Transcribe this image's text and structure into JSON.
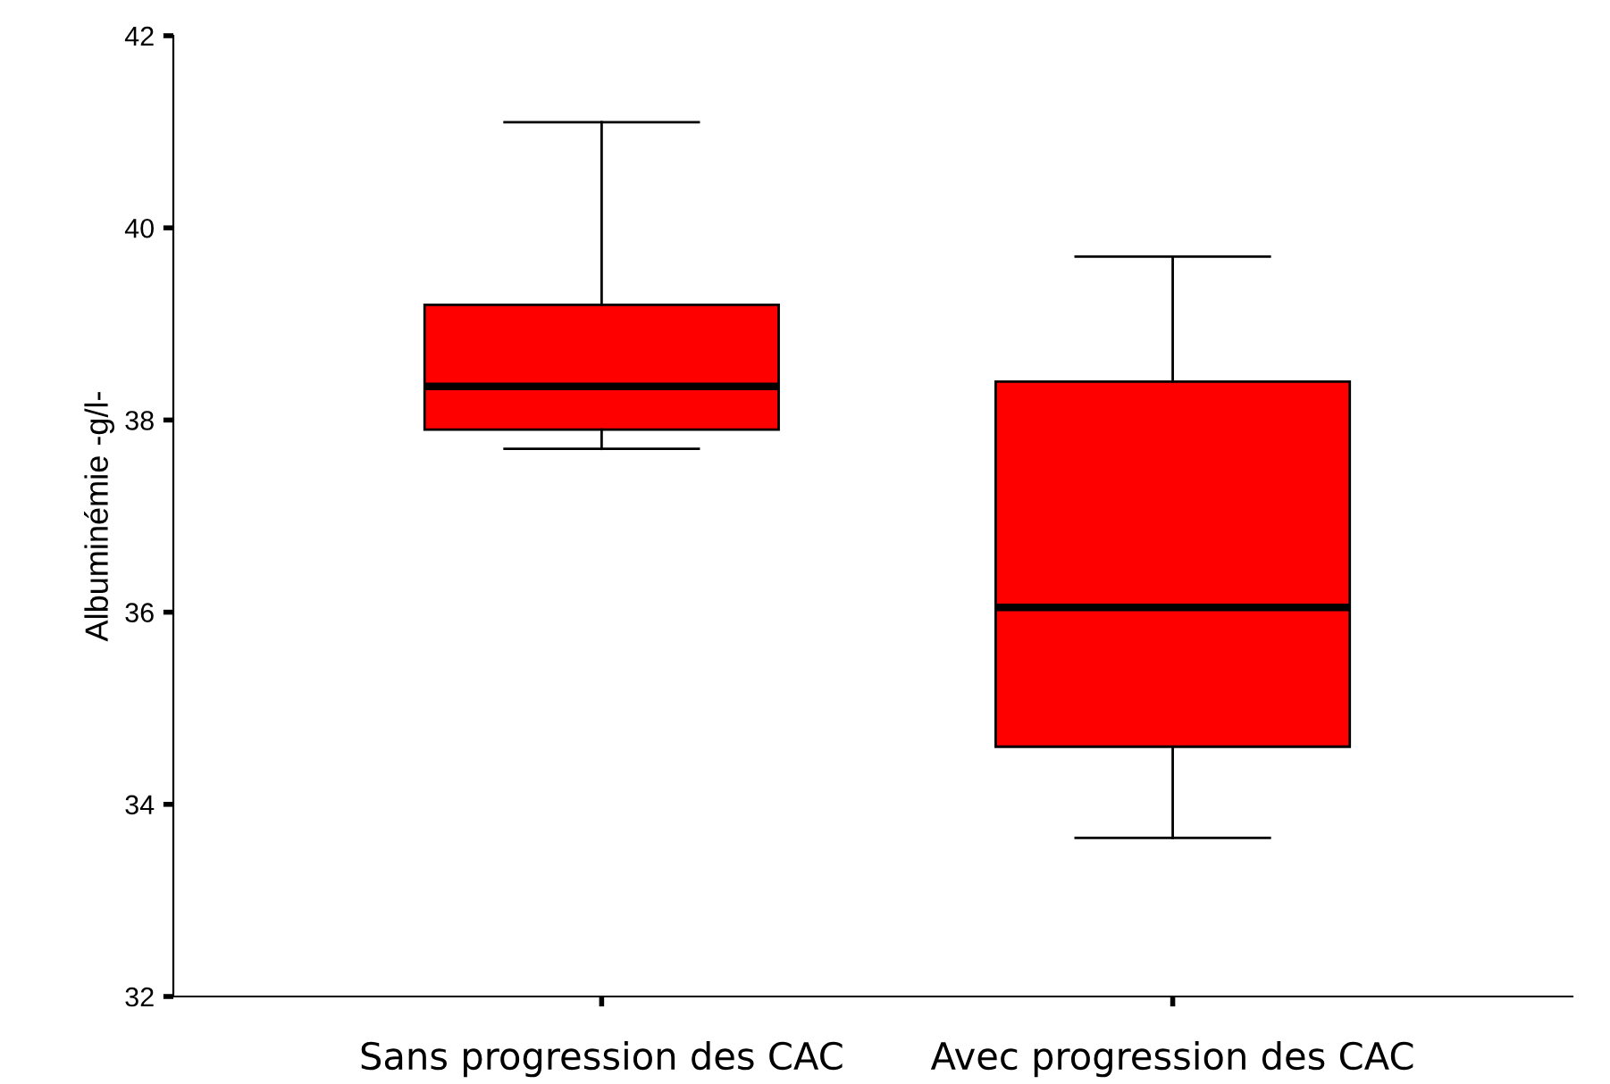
{
  "chart_data": {
    "type": "box",
    "ylabel": "Albuminémie -g/l-",
    "categories": [
      "Sans progression des CAC",
      "Avec progression des CAC"
    ],
    "boxes": [
      {
        "low": 37.7,
        "q1": 37.9,
        "median": 38.35,
        "q3": 39.2,
        "high": 41.1
      },
      {
        "low": 33.65,
        "q1": 34.6,
        "median": 36.05,
        "q3": 38.4,
        "high": 39.7
      }
    ],
    "color": "#ff0000",
    "ylim": [
      32,
      42
    ],
    "yticks": [
      32,
      34,
      36,
      38,
      40,
      42
    ],
    "grid": false
  }
}
